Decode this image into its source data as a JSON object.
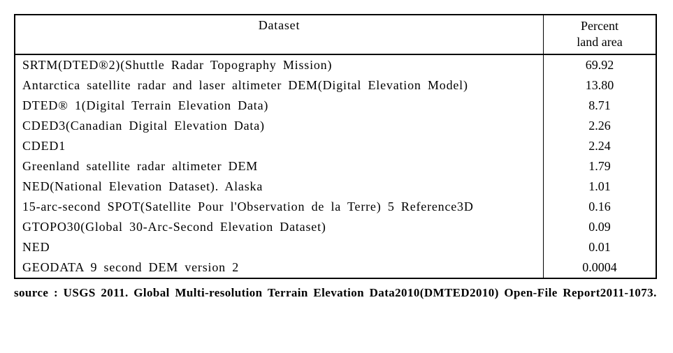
{
  "table": {
    "header": {
      "dataset": "Dataset",
      "percent_line1": "Percent",
      "percent_line2": "land area"
    },
    "rows": [
      {
        "dataset": "SRTM(DTED®2)(Shuttle Radar Topography Mission)",
        "percent": "69.92"
      },
      {
        "dataset": "Antarctica satellite radar and laser altimeter DEM(Digital Elevation Model)",
        "percent": "13.80"
      },
      {
        "dataset": "DTED® 1(Digital Terrain Elevation Data)",
        "percent": "8.71"
      },
      {
        "dataset": "CDED3(Canadian Digital Elevation Data)",
        "percent": "2.26"
      },
      {
        "dataset": "CDED1",
        "percent": "2.24"
      },
      {
        "dataset": "Greenland satellite radar altimeter DEM",
        "percent": "1.79"
      },
      {
        "dataset": "NED(National Elevation Dataset). Alaska",
        "percent": "1.01"
      },
      {
        "dataset": "15-arc-second SPOT(Satellite Pour l'Observation de la Terre) 5 Reference3D",
        "percent": "0.16"
      },
      {
        "dataset": "GTOPO30(Global 30-Arc-Second Elevation Dataset)",
        "percent": "0.09"
      },
      {
        "dataset": "NED",
        "percent": "0.01"
      },
      {
        "dataset": "GEODATA 9 second DEM version 2",
        "percent": "0.0004"
      }
    ]
  },
  "source": "source : USGS 2011. Global Multi-resolution Terrain Elevation Data2010(DMTED2010) Open-File Report2011-1073."
}
